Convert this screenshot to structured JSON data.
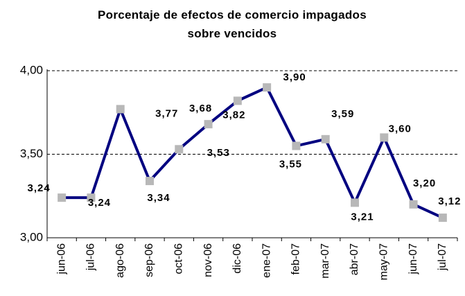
{
  "chart_data": {
    "type": "line",
    "title": "Porcentaje de efectos de comercio impagados sobre vencidos",
    "categories": [
      "jun-06",
      "jul-06",
      "ago-06",
      "sep-06",
      "oct-06",
      "nov-06",
      "dic-06",
      "ene-07",
      "feb-07",
      "mar-07",
      "abr-07",
      "may-07",
      "jun-07",
      "jul-07"
    ],
    "series": [
      {
        "color": "#000080",
        "values": [
          3.24,
          3.24,
          3.77,
          3.34,
          3.53,
          3.68,
          3.82,
          3.9,
          3.55,
          3.59,
          3.21,
          3.6,
          3.2,
          3.12
        ],
        "value_labels": [
          "3,24",
          "3,24",
          "3,77",
          "3,34",
          "3,53",
          "3,68",
          "3,82",
          "3,90",
          "3,55",
          "3,59",
          "3,21",
          "3,60",
          "3,20",
          "3,12"
        ]
      }
    ],
    "marker_color": "#b8b8b8",
    "ylim": [
      3.0,
      4.0
    ],
    "yticks": [
      {
        "value": 3.0,
        "label": "3,00"
      },
      {
        "value": 3.5,
        "label": "3,50"
      },
      {
        "value": 4.0,
        "label": "4,00"
      }
    ],
    "grid": true
  }
}
